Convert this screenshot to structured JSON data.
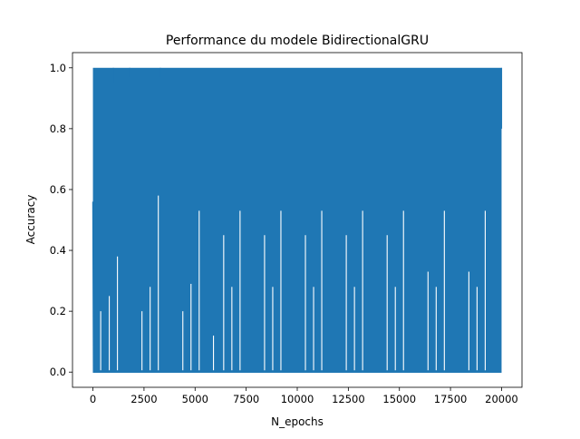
{
  "chart_data": {
    "type": "line",
    "title": "Performance du modele BidirectionalGRU",
    "xlabel": "N_epochs",
    "ylabel": "Accuracy",
    "xlim": [
      -1000,
      21000
    ],
    "ylim": [
      -0.05,
      1.05
    ],
    "xticks": [
      0,
      2500,
      5000,
      7500,
      10000,
      12500,
      15000,
      17500,
      20000
    ],
    "xtick_labels": [
      "0",
      "2500",
      "5000",
      "7500",
      "10000",
      "12500",
      "15000",
      "17500",
      "20000"
    ],
    "yticks": [
      0.0,
      0.2,
      0.4,
      0.6,
      0.8,
      1.0
    ],
    "ytick_labels": [
      "0.0",
      "0.2",
      "0.4",
      "0.6",
      "0.8",
      "1.0"
    ],
    "grid": false,
    "series": [
      {
        "color": "#1f77b4",
        "x_range": [
          0,
          20000
        ],
        "y_band": [
          0.0,
          1.0
        ],
        "lower_envelope": [
          [
            0,
            0.56
          ],
          [
            30,
            0.0
          ],
          [
            20000,
            0.0
          ]
        ],
        "upper_envelope": [
          [
            0,
            1.0
          ],
          [
            20000,
            1.0
          ]
        ],
        "upper_dips": [
          [
            1000,
            0.95
          ],
          [
            1800,
            0.97
          ],
          [
            3300,
            0.97
          ]
        ],
        "end_value": 0.8,
        "spikes": [
          [
            380,
            0.2
          ],
          [
            800,
            0.25
          ],
          [
            1200,
            0.38
          ],
          [
            2400,
            0.2
          ],
          [
            2800,
            0.28
          ],
          [
            3200,
            0.58
          ],
          [
            4400,
            0.2
          ],
          [
            4800,
            0.29
          ],
          [
            5200,
            0.53
          ],
          [
            5900,
            0.12
          ],
          [
            6400,
            0.45
          ],
          [
            6800,
            0.28
          ],
          [
            7200,
            0.53
          ],
          [
            8400,
            0.45
          ],
          [
            8800,
            0.28
          ],
          [
            9200,
            0.53
          ],
          [
            10400,
            0.45
          ],
          [
            10800,
            0.28
          ],
          [
            11200,
            0.53
          ],
          [
            12400,
            0.45
          ],
          [
            12800,
            0.28
          ],
          [
            13200,
            0.53
          ],
          [
            14400,
            0.45
          ],
          [
            14800,
            0.28
          ],
          [
            15200,
            0.53
          ],
          [
            16400,
            0.33
          ],
          [
            16800,
            0.28
          ],
          [
            17200,
            0.53
          ],
          [
            18400,
            0.33
          ],
          [
            18800,
            0.28
          ],
          [
            19200,
            0.53
          ]
        ]
      }
    ]
  }
}
